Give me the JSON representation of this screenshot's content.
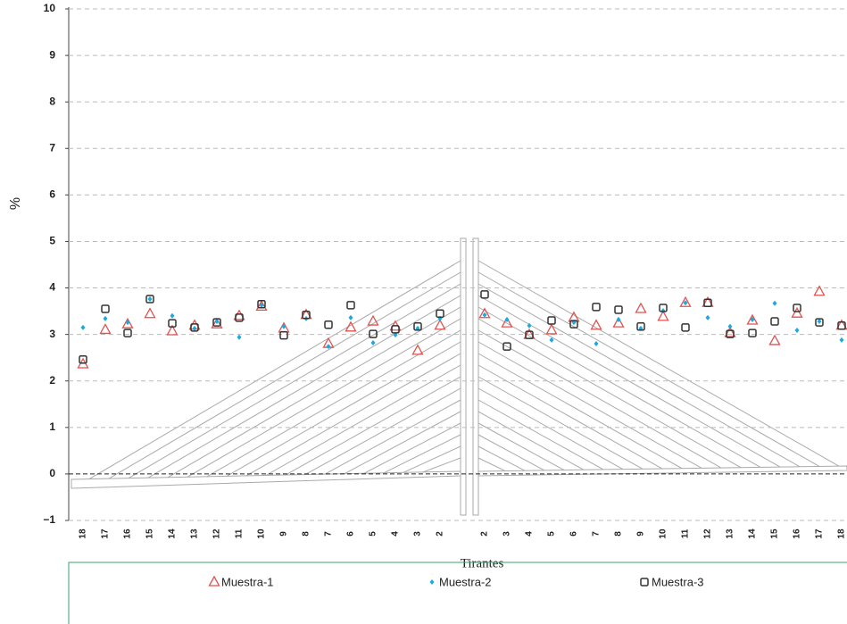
{
  "chart_data": {
    "type": "scatter",
    "x_label": "Tirantes",
    "y_label": "%",
    "categories": [
      "18",
      "17",
      "16",
      "15",
      "14",
      "13",
      "12",
      "11",
      "10",
      "9",
      "8",
      "7",
      "6",
      "5",
      "4",
      "3",
      "2",
      null,
      "2",
      "3",
      "4",
      "5",
      "6",
      "7",
      "8",
      "9",
      "10",
      "11",
      "12",
      "13",
      "14",
      "15",
      "16",
      "17",
      "18"
    ],
    "ylim": [
      -1,
      10
    ],
    "yticks": [
      {
        "value": -1,
        "label": "−1"
      },
      0,
      1,
      2,
      3,
      4,
      5,
      6,
      7,
      8,
      9,
      10
    ],
    "grid": true,
    "legend": "bottom",
    "series": [
      {
        "name": "Muestra-1",
        "color": "#e0524f",
        "marker": "triangle",
        "values": [
          2.36,
          3.1,
          3.22,
          3.44,
          3.07,
          3.19,
          3.22,
          3.4,
          3.6,
          3.13,
          3.42,
          2.8,
          3.15,
          3.28,
          3.17,
          2.65,
          3.19,
          null,
          3.44,
          3.24,
          2.99,
          3.09,
          3.36,
          3.19,
          3.24,
          3.55,
          3.38,
          3.68,
          3.68,
          3.03,
          3.3,
          2.86,
          3.45,
          3.92,
          3.19
        ]
      },
      {
        "name": "Muestra-2",
        "color": "#1ca9e0",
        "marker": "diamond",
        "values": [
          3.15,
          3.34,
          3.26,
          3.76,
          3.4,
          3.13,
          3.28,
          2.94,
          3.63,
          3.17,
          3.34,
          2.74,
          3.36,
          2.82,
          2.99,
          3.13,
          3.34,
          null,
          3.42,
          3.32,
          3.19,
          2.88,
          3.26,
          2.8,
          3.32,
          3.13,
          3.51,
          3.68,
          3.36,
          3.17,
          3.32,
          3.67,
          3.09,
          3.28,
          2.88
        ]
      },
      {
        "name": "Muestra-3",
        "color": "#333333",
        "marker": "square",
        "values": [
          2.46,
          3.55,
          3.03,
          3.76,
          3.24,
          3.15,
          3.26,
          3.36,
          3.65,
          2.98,
          3.42,
          3.21,
          3.63,
          3.01,
          3.11,
          3.17,
          3.45,
          null,
          3.86,
          2.74,
          2.99,
          3.3,
          3.22,
          3.59,
          3.53,
          3.17,
          3.57,
          3.15,
          3.68,
          3.01,
          3.03,
          3.28,
          3.57,
          3.26,
          3.19
        ]
      }
    ]
  }
}
